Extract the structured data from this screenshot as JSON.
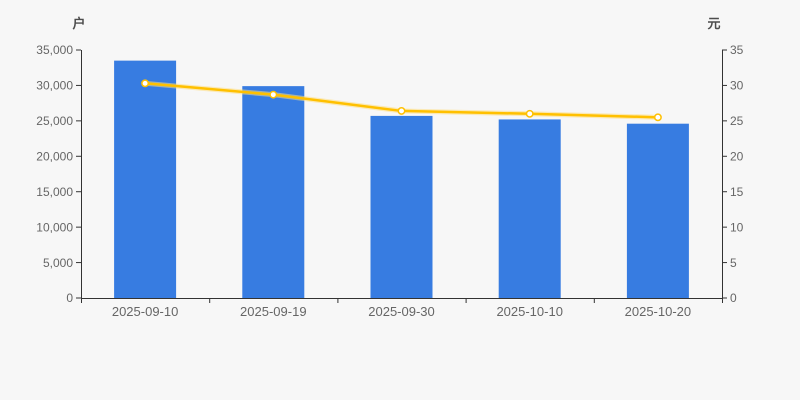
{
  "page": {
    "background": "#f7f7f7"
  },
  "colors": {
    "bar": "#377ce1",
    "line": "#ffc000",
    "line_halo": "#ffdf80",
    "marker_fill": "#ffffff",
    "axis_line": "#333333",
    "tick_label": "#666666",
    "axis_name": "#4d4d4d",
    "background": "#f7f7f7"
  },
  "chart_data": {
    "type": "bar",
    "combo": "bar+line",
    "title": "",
    "categories": [
      "2025-09-10",
      "2025-09-19",
      "2025-09-30",
      "2025-10-10",
      "2025-10-20"
    ],
    "series": [
      {
        "name": "户",
        "type": "bar",
        "axis": "left",
        "values": [
          33500,
          29900,
          25700,
          25200,
          24600
        ]
      },
      {
        "name": "元",
        "type": "line",
        "axis": "right",
        "values": [
          30.3,
          28.7,
          26.4,
          26.0,
          25.5
        ]
      }
    ],
    "left_axis": {
      "name": "户",
      "min": 0,
      "max": 35000,
      "step": 5000,
      "tick_labels": [
        "0",
        "5,000",
        "10,000",
        "15,000",
        "20,000",
        "25,000",
        "30,000",
        "35,000"
      ]
    },
    "right_axis": {
      "name": "元",
      "min": 0,
      "max": 35,
      "step": 5,
      "tick_labels": [
        "0",
        "5",
        "10",
        "15",
        "20",
        "25",
        "30",
        "35"
      ]
    },
    "grid": false,
    "legend": false
  }
}
